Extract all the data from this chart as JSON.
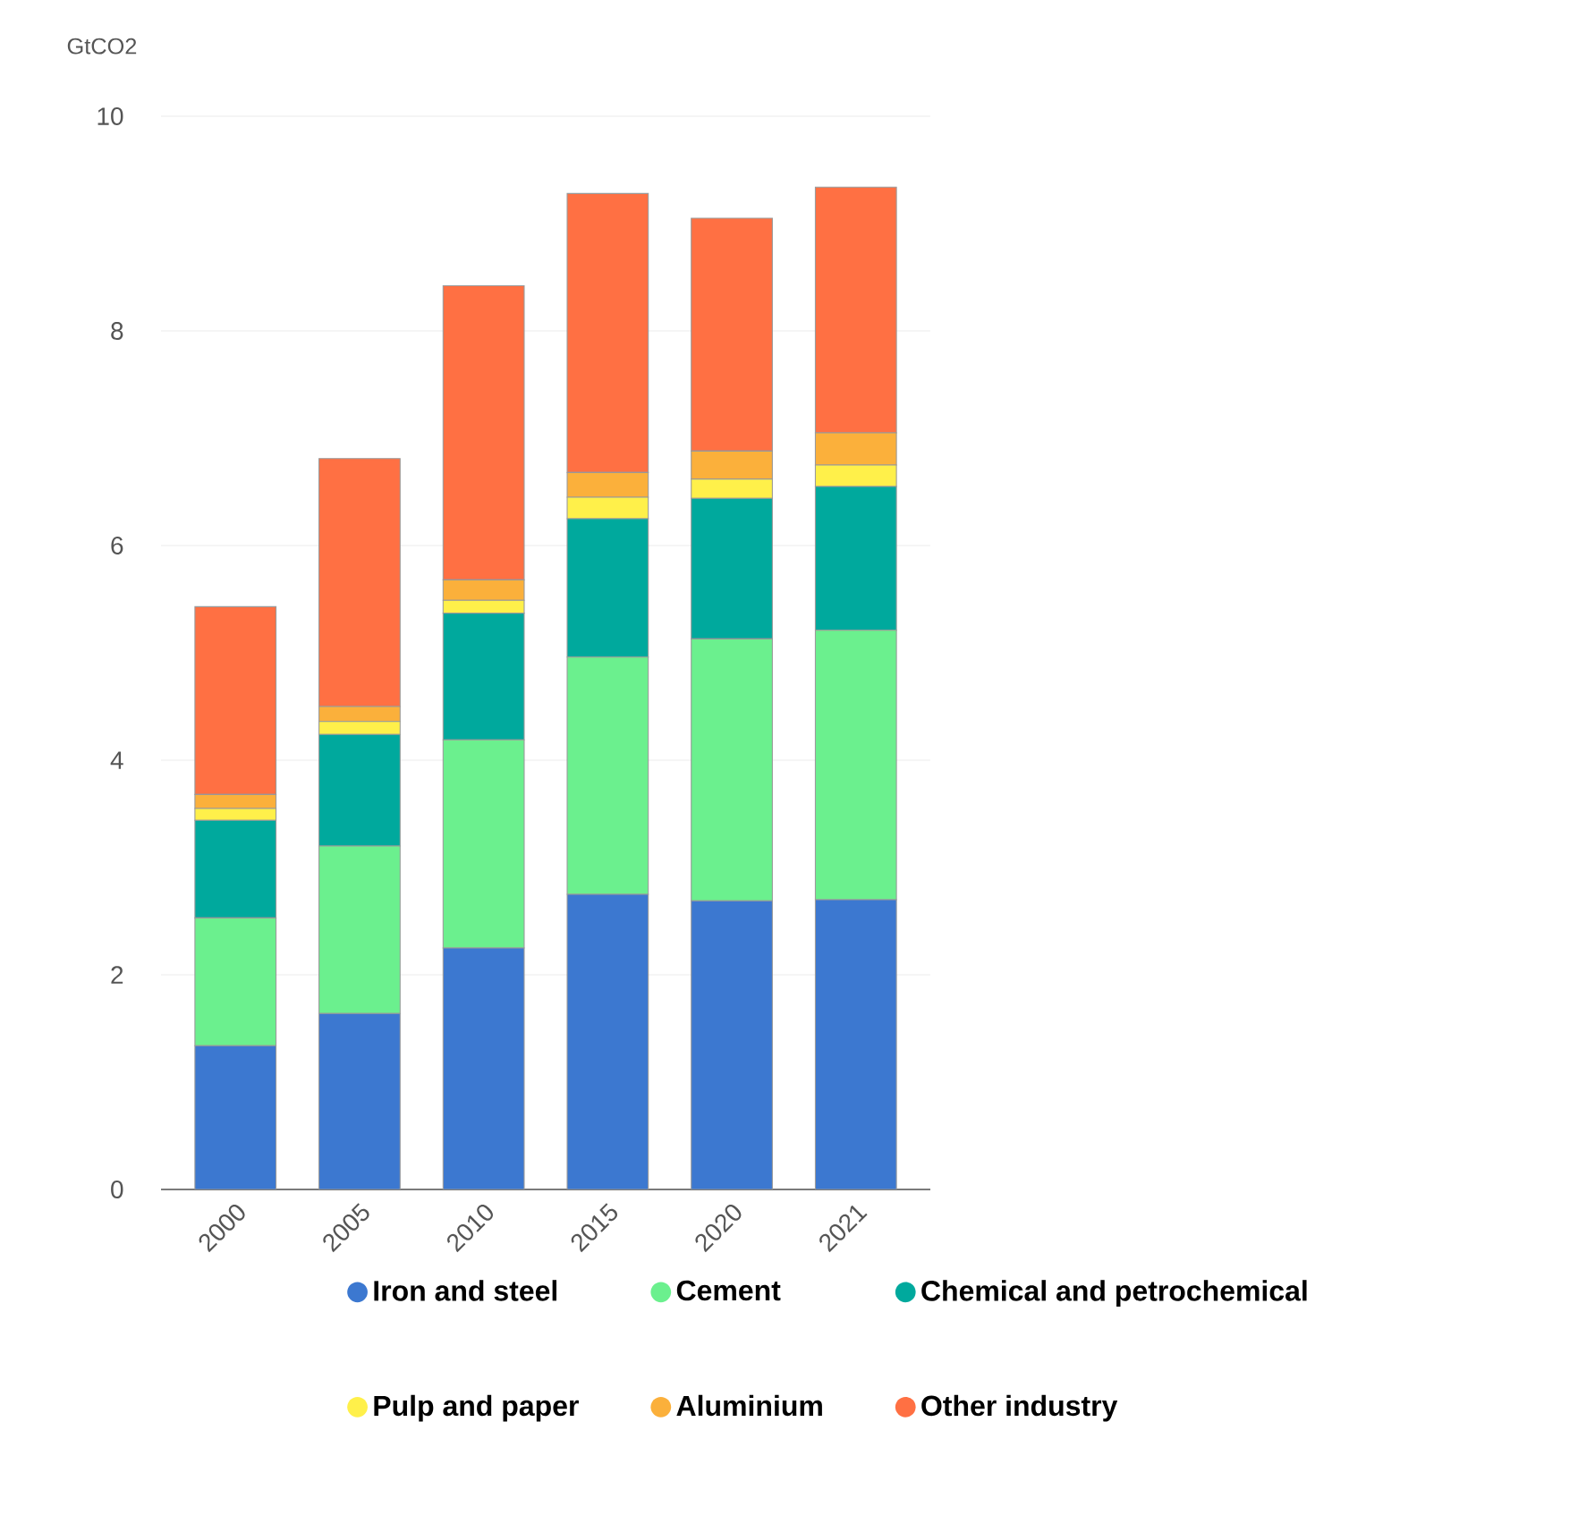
{
  "chart_data": {
    "type": "bar",
    "stacked": true,
    "ylabel": "GtCO2",
    "categories": [
      "2000",
      "2005",
      "2010",
      "2015",
      "2020",
      "2021"
    ],
    "series": [
      {
        "name": "Iron and steel",
        "color": "#3c78d0",
        "values": [
          1.34,
          1.64,
          2.25,
          2.75,
          2.69,
          2.7
        ]
      },
      {
        "name": "Cement",
        "color": "#6bf08e",
        "values": [
          1.19,
          1.56,
          1.94,
          2.21,
          2.44,
          2.51
        ]
      },
      {
        "name": "Chemical and petrochemical",
        "color": "#00a99d",
        "values": [
          0.91,
          1.04,
          1.18,
          1.29,
          1.31,
          1.34
        ]
      },
      {
        "name": "Pulp and paper",
        "color": "#fff04a",
        "values": [
          0.11,
          0.12,
          0.12,
          0.2,
          0.18,
          0.2
        ]
      },
      {
        "name": "Aluminium",
        "color": "#fbb03b",
        "values": [
          0.13,
          0.14,
          0.19,
          0.23,
          0.26,
          0.3
        ]
      },
      {
        "name": "Other industry",
        "color": "#ff7043",
        "values": [
          1.75,
          2.31,
          2.74,
          2.6,
          2.17,
          2.29
        ]
      }
    ],
    "ylim": [
      0,
      10
    ],
    "yticks": [
      0,
      2,
      4,
      6,
      8,
      10
    ],
    "grid": "y",
    "legend": "bottom"
  }
}
